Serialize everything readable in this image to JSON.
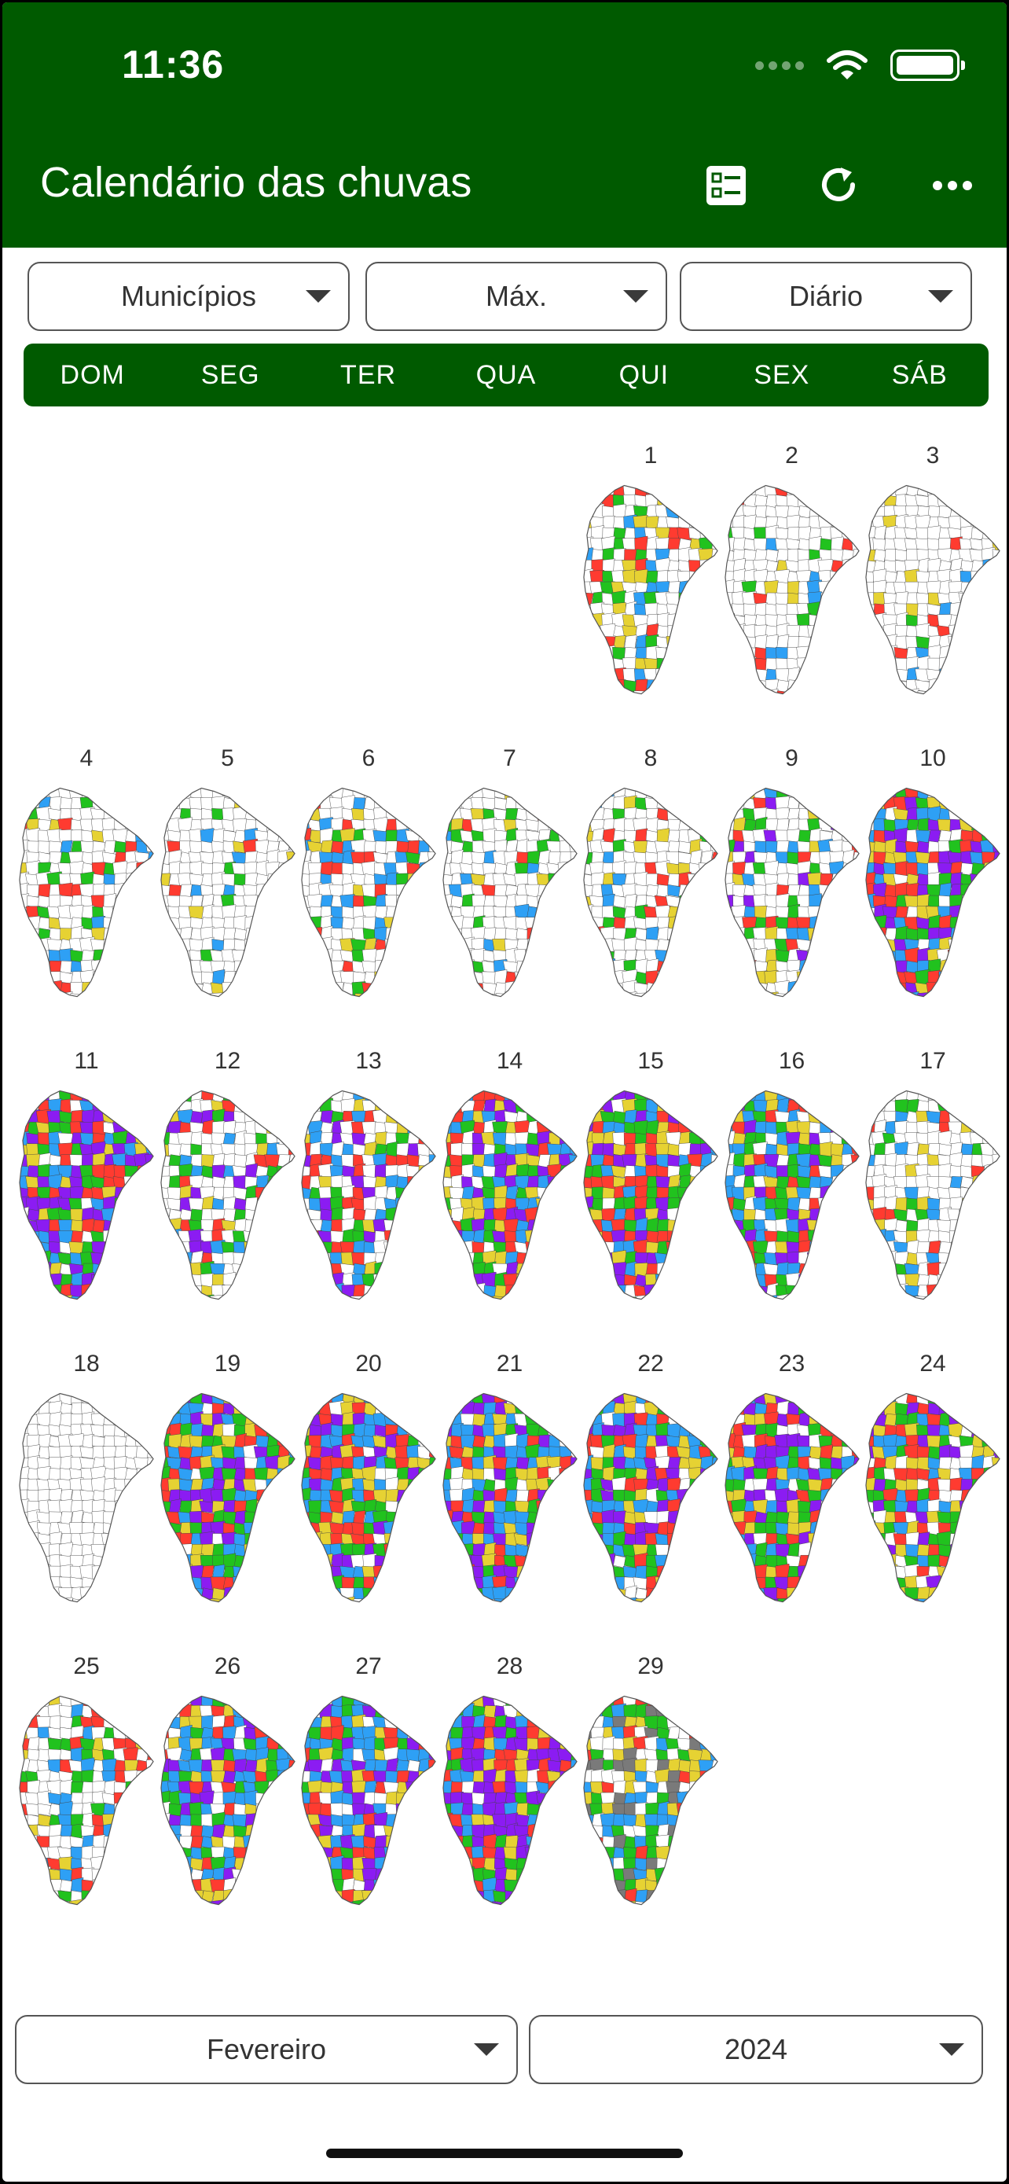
{
  "status_bar": {
    "time": "11:36"
  },
  "header": {
    "title": "Calendário das chuvas",
    "icons": [
      "list-toggle-icon",
      "refresh-icon",
      "more-options-icon"
    ]
  },
  "filters": {
    "region": "Municípios",
    "statistic": "Máx.",
    "period": "Diário"
  },
  "weekdays": [
    "DOM",
    "SEG",
    "TER",
    "QUA",
    "QUI",
    "SEX",
    "SÁB"
  ],
  "calendar": {
    "first_weekday_index": 4,
    "days": [
      {
        "label": "1",
        "coverage": 0.4,
        "palette": "light"
      },
      {
        "label": "2",
        "coverage": 0.15,
        "palette": "light"
      },
      {
        "label": "3",
        "coverage": 0.15,
        "palette": "light"
      },
      {
        "label": "4",
        "coverage": 0.35,
        "palette": "light"
      },
      {
        "label": "5",
        "coverage": 0.1,
        "palette": "light"
      },
      {
        "label": "6",
        "coverage": 0.35,
        "palette": "light"
      },
      {
        "label": "7",
        "coverage": 0.2,
        "palette": "light"
      },
      {
        "label": "8",
        "coverage": 0.25,
        "palette": "light"
      },
      {
        "label": "9",
        "coverage": 0.4,
        "palette": "mixed"
      },
      {
        "label": "10",
        "coverage": 0.9,
        "palette": "mixed"
      },
      {
        "label": "11",
        "coverage": 0.9,
        "palette": "purple"
      },
      {
        "label": "12",
        "coverage": 0.45,
        "palette": "mixed"
      },
      {
        "label": "13",
        "coverage": 0.55,
        "palette": "mixed"
      },
      {
        "label": "14",
        "coverage": 0.8,
        "palette": "mixed"
      },
      {
        "label": "15",
        "coverage": 0.9,
        "palette": "mixed"
      },
      {
        "label": "16",
        "coverage": 0.85,
        "palette": "blue"
      },
      {
        "label": "17",
        "coverage": 0.3,
        "palette": "light"
      },
      {
        "label": "18",
        "coverage": 0.0,
        "palette": "light"
      },
      {
        "label": "19",
        "coverage": 0.95,
        "palette": "mixed"
      },
      {
        "label": "20",
        "coverage": 0.9,
        "palette": "mixed"
      },
      {
        "label": "21",
        "coverage": 0.9,
        "palette": "blue"
      },
      {
        "label": "22",
        "coverage": 0.9,
        "palette": "blue"
      },
      {
        "label": "23",
        "coverage": 0.9,
        "palette": "mixed"
      },
      {
        "label": "24",
        "coverage": 0.8,
        "palette": "mixed"
      },
      {
        "label": "25",
        "coverage": 0.45,
        "palette": "light"
      },
      {
        "label": "26",
        "coverage": 0.85,
        "palette": "blue"
      },
      {
        "label": "27",
        "coverage": 0.85,
        "palette": "blue"
      },
      {
        "label": "28",
        "coverage": 0.95,
        "palette": "purple"
      },
      {
        "label": "29",
        "coverage": 0.75,
        "palette": "gray"
      }
    ]
  },
  "colors": {
    "header_green": "#005a00",
    "rain_classes": [
      "#2ea0f5",
      "#e6d233",
      "#ff3b30",
      "#21c21e",
      "#8b1cf2",
      "#7a7a7a"
    ]
  },
  "footer": {
    "month": "Fevereiro",
    "year": "2024"
  }
}
